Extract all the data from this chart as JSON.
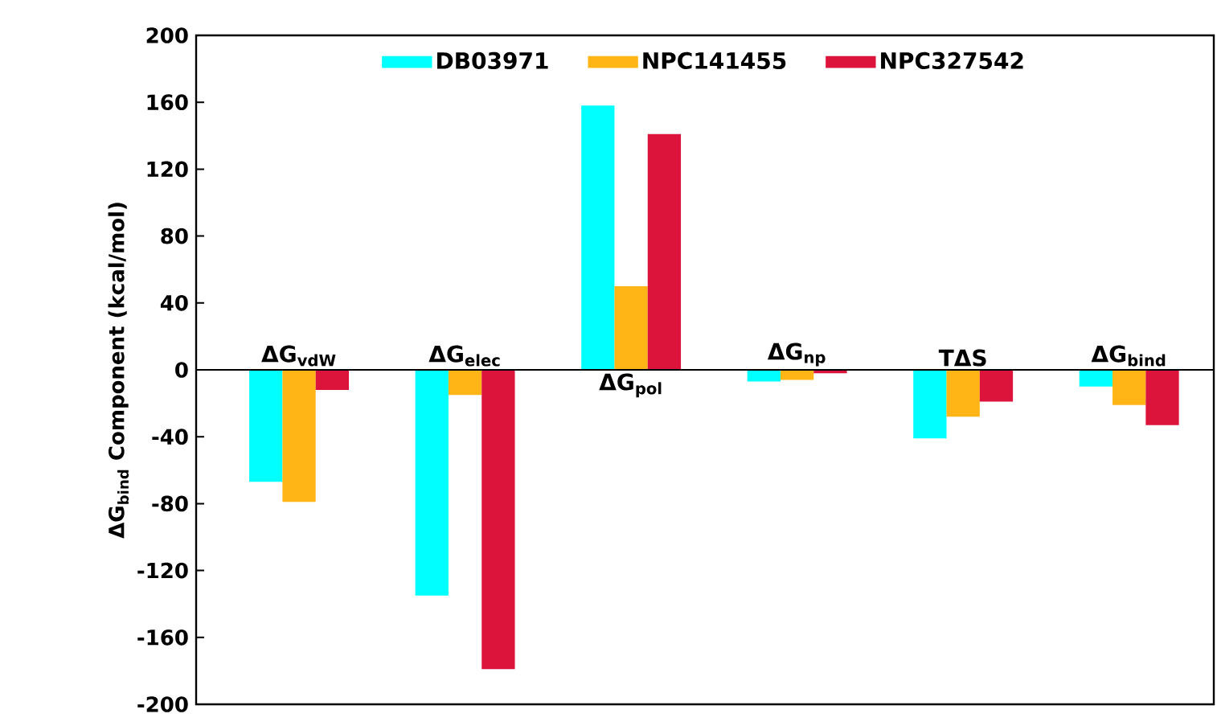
{
  "chart_data": {
    "type": "bar",
    "categories": [
      "ΔG$_{vdW}$",
      "ΔG$_{elec}$",
      "ΔG$_{pol}$",
      "ΔG$_{np}$",
      "TΔS",
      "ΔG$_{bind}$"
    ],
    "series": [
      {
        "name": "DB03971",
        "color": "#00ffff",
        "values": [
          -67,
          -135,
          158,
          -7,
          -41,
          -10
        ]
      },
      {
        "name": "NPC141455",
        "color": "#ffb515",
        "values": [
          -79,
          -15,
          50,
          -6,
          -28,
          -21
        ]
      },
      {
        "name": "NPC327542",
        "color": "#dc143c",
        "values": [
          -12,
          -179,
          141,
          -2,
          -19,
          -33
        ]
      }
    ],
    "ylabel": "ΔG$_{bind}$ Component (kcal/mol)",
    "ylim": [
      -200,
      200
    ],
    "yticks": [
      -200,
      -160,
      -120,
      -80,
      -40,
      0,
      40,
      80,
      120,
      160,
      200
    ],
    "legend": "top",
    "grid": false
  }
}
